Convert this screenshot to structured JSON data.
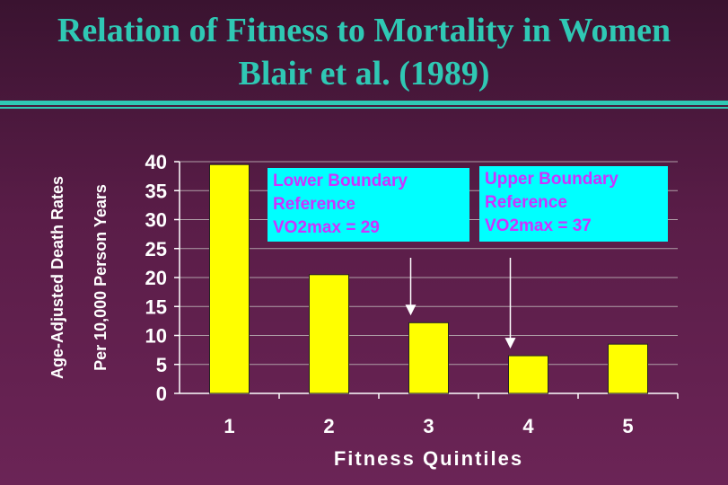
{
  "title_line1": "Relation of Fitness to Mortality in Women",
  "title_line2": "Blair et al. (1989)",
  "colors": {
    "title": "#2fc8b4",
    "bar": "#ffff00",
    "callout_bg": "#00ffff",
    "callout_text": "#cc33ff",
    "grid": "#b0a0a8",
    "axis_text": "#ffffff"
  },
  "chart_data": {
    "type": "bar",
    "categories": [
      "1",
      "2",
      "3",
      "4",
      "5"
    ],
    "values": [
      39.5,
      20.5,
      12.2,
      6.5,
      8.5
    ],
    "xlabel": "Fitness Quintiles",
    "ylabel": "Age-Adjusted Death Rates",
    "ylabel2": "Per 10,000 Person Years",
    "ylim": [
      0,
      40
    ],
    "yticks": [
      0,
      5,
      10,
      15,
      20,
      25,
      30,
      35,
      40
    ],
    "grid": true,
    "annotations": [
      {
        "lines": [
          "Lower Boundary",
          "Reference",
          "VO2max = 29"
        ],
        "arrow_to_category": "3"
      },
      {
        "lines": [
          "Upper Boundary",
          "Reference",
          "VO2max = 37"
        ],
        "arrow_to_category": "4"
      }
    ]
  }
}
